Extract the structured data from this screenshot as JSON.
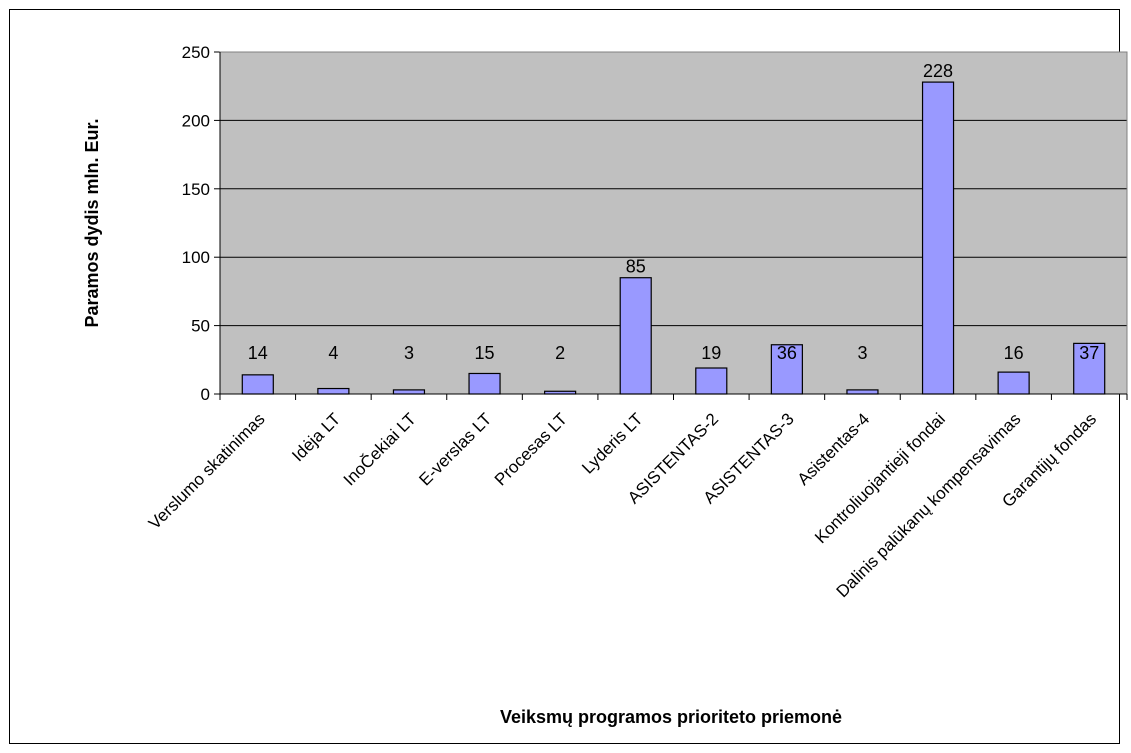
{
  "chart_data": {
    "type": "bar",
    "title": "",
    "xlabel": "Veiksmų programos prioriteto priemonė",
    "ylabel": "Paramos dydis mln. Eur.",
    "ylim": [
      0,
      250
    ],
    "yticks": [
      0,
      50,
      100,
      150,
      200,
      250
    ],
    "grid": true,
    "legend": "none",
    "colors": {
      "plot_bg": "#c0c0c0",
      "bar": "#9999ff",
      "bar_edge": "#000000",
      "grid": "#000000"
    },
    "categories": [
      "Verslumo skatinimas",
      "Idėja LT",
      "InoČekiai LT",
      "E-verslas LT",
      "Procesas LT",
      "Lyderis LT",
      "ASISTENTAS-2",
      "ASISTENTAS-3",
      "Asistentas-4",
      "Kontroliuojantieji fondai",
      "Dalinis palūkanų kompensavimas",
      "Garantijų fondas"
    ],
    "values": [
      14,
      4,
      3,
      15,
      2,
      85,
      19,
      36,
      3,
      228,
      16,
      37
    ],
    "data_labels": [
      "14",
      "4",
      "3",
      "15",
      "2",
      "85",
      "19",
      "36",
      "3",
      "228",
      "16",
      "37"
    ]
  }
}
